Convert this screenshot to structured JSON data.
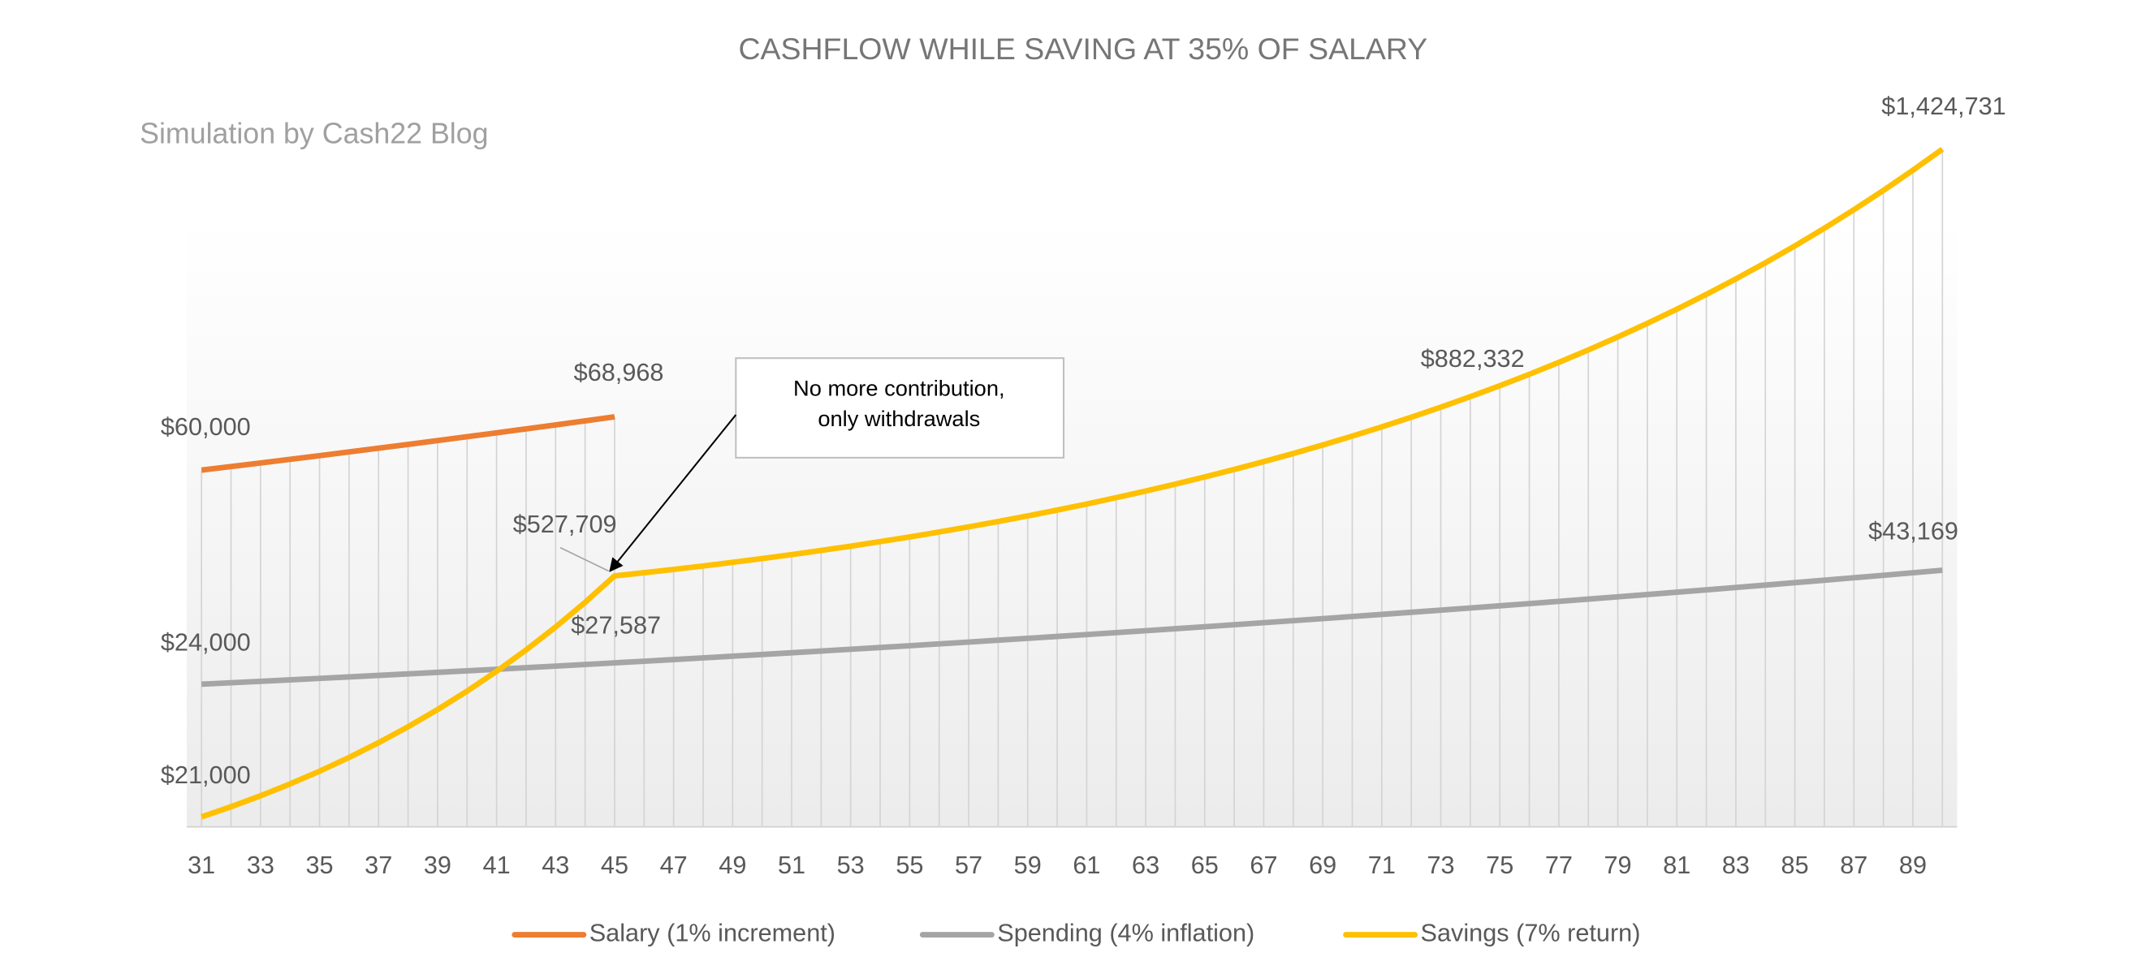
{
  "chart_data": {
    "type": "line",
    "title": "CASHFLOW WHILE SAVING AT 35% OF SALARY",
    "subtitle": "Simulation by Cash22 Blog",
    "x": [
      31,
      32,
      33,
      34,
      35,
      36,
      37,
      38,
      39,
      40,
      41,
      42,
      43,
      44,
      45,
      46,
      47,
      48,
      49,
      50,
      51,
      52,
      53,
      54,
      55,
      56,
      57,
      58,
      59,
      60,
      61,
      62,
      63,
      64,
      65,
      66,
      67,
      68,
      69,
      70,
      71,
      72,
      73,
      74,
      75,
      76,
      77,
      78,
      79,
      80,
      81,
      82,
      83,
      84,
      85,
      86,
      87,
      88,
      89,
      90
    ],
    "xlim": [
      30.5,
      90.5
    ],
    "xticks": [
      31,
      33,
      35,
      37,
      39,
      41,
      43,
      45,
      47,
      49,
      51,
      53,
      55,
      57,
      59,
      61,
      63,
      65,
      67,
      69,
      71,
      73,
      75,
      77,
      79,
      81,
      83,
      85,
      87,
      89
    ],
    "ylim": [
      0,
      120000
    ],
    "y2lim": [
      0,
      1500000
    ],
    "legend": "bottom",
    "annotation": {
      "text": [
        "No more contribution,",
        "only withdrawals"
      ]
    },
    "series": [
      {
        "name": "Salary (1% increment)",
        "color": "#ed7d31",
        "values": [
          60000,
          60600,
          61206,
          61818,
          62436,
          63061,
          63691,
          64328,
          64971,
          65621,
          66277,
          66940,
          67609,
          68285,
          68968,
          null,
          null,
          null,
          null,
          null,
          null,
          null,
          null,
          null,
          null,
          null,
          null,
          null,
          null,
          null,
          null,
          null,
          null,
          null,
          null,
          null,
          null,
          null,
          null,
          null,
          null,
          null,
          null,
          null,
          null,
          null,
          null,
          null,
          null,
          null,
          null,
          null,
          null,
          null,
          null,
          null,
          null,
          null,
          null,
          null
        ],
        "value_labels": [
          "$60,000",
          null,
          null,
          null,
          null,
          null,
          null,
          null,
          null,
          null,
          null,
          null,
          null,
          null,
          "$68,968",
          null,
          null,
          null,
          null,
          null,
          null,
          null,
          null,
          null,
          null,
          null,
          null,
          null,
          null,
          null,
          null,
          null,
          null,
          null,
          null,
          null,
          null,
          null,
          null,
          null,
          null,
          null,
          null,
          null,
          null,
          null,
          null,
          null,
          null,
          null,
          null,
          null,
          null,
          null,
          null,
          null,
          null,
          null,
          null,
          null
        ]
      },
      {
        "name": "Spending (4% inflation)",
        "color": "#a5a5a5",
        "values": [
          24000,
          24240,
          24482,
          24727,
          24974,
          25224,
          25476,
          25731,
          25989,
          26248,
          26511,
          26776,
          27044,
          27314,
          27587,
          27863,
          28142,
          28423,
          28707,
          28994,
          29284,
          29577,
          29873,
          30172,
          30473,
          30778,
          31086,
          31397,
          31711,
          32028,
          32348,
          32672,
          32998,
          33328,
          33662,
          33998,
          34338,
          34682,
          35029,
          35379,
          35733,
          36090,
          36451,
          36815,
          37184,
          37555,
          37931,
          38310,
          38693,
          39080,
          39471,
          39866,
          40264,
          40667,
          41074,
          41484,
          41899,
          42318,
          42742,
          43169
        ],
        "value_labels": [
          "$24,000",
          null,
          null,
          null,
          null,
          null,
          null,
          null,
          null,
          null,
          null,
          null,
          null,
          null,
          "$27,587",
          null,
          null,
          null,
          null,
          null,
          null,
          null,
          null,
          null,
          null,
          null,
          null,
          null,
          null,
          null,
          null,
          null,
          null,
          null,
          null,
          null,
          null,
          null,
          null,
          null,
          null,
          null,
          null,
          null,
          null,
          null,
          null,
          null,
          null,
          null,
          null,
          null,
          null,
          null,
          null,
          null,
          null,
          null,
          null,
          "$43,169"
        ]
      },
      {
        "name": "Savings (7% return)",
        "color": "#ffc000",
        "axis": "y2",
        "values": [
          21000,
          42348,
          65391,
          90247,
          117048,
          145931,
          177042,
          210542,
          246598,
          285392,
          327118,
          371983,
          420210,
          472035,
          527709,
          534327,
          541261,
          548527,
          556133,
          564090,
          572413,
          581111,
          590199,
          599692,
          609604,
          619951,
          630748,
          642015,
          653768,
          666026,
          678813,
          692146,
          706050,
          720548,
          735665,
          751428,
          767865,
          785003,
          802874,
          821511,
          840948,
          861221,
          882332,
          904439,
          927458,
          951481,
          976551,
          1002720,
          1030040,
          1058560,
          1088350,
          1119470,
          1151980,
          1185960,
          1221470,
          1258600,
          1297420,
          1338020,
          1380490,
          1424731
        ],
        "value_labels": [
          "$21,000",
          null,
          null,
          null,
          null,
          null,
          null,
          null,
          null,
          null,
          null,
          null,
          null,
          null,
          "$527,709",
          null,
          null,
          null,
          null,
          null,
          null,
          null,
          null,
          null,
          null,
          null,
          null,
          null,
          null,
          null,
          null,
          null,
          null,
          null,
          null,
          null,
          null,
          null,
          null,
          null,
          null,
          null,
          "$882,332",
          null,
          null,
          null,
          null,
          null,
          null,
          null,
          null,
          null,
          null,
          null,
          null,
          null,
          null,
          null,
          null,
          "$1,424,731"
        ]
      }
    ]
  }
}
